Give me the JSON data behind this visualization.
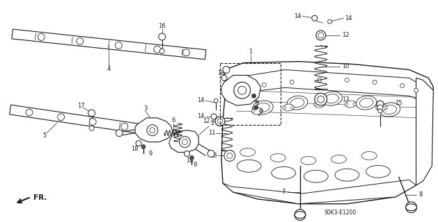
{
  "bg_color": "#ffffff",
  "fig_width": 6.29,
  "fig_height": 3.2,
  "dpi": 100,
  "diagram_code": "S0K3-E1200",
  "arrow_label": "FR.",
  "lc": "#1a1a1a",
  "label_fontsize": 6.0
}
